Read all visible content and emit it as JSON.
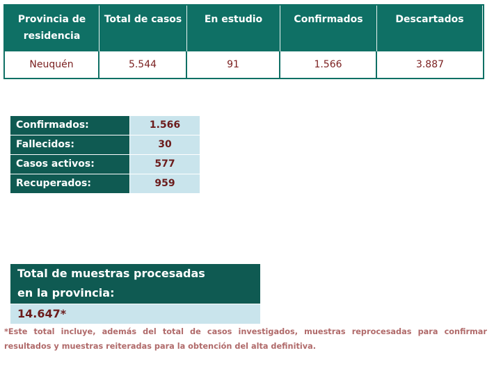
{
  "cases_table": {
    "headers": [
      "Provincia de residencia",
      "Total de casos",
      "En estudio",
      "Confirmados",
      "Descartados"
    ],
    "row": {
      "provincia": "Neuquén",
      "total": "5.544",
      "en_estudio": "91",
      "confirmados": "1.566",
      "descartados": "3.887"
    }
  },
  "summary": [
    {
      "label": "Confirmados:",
      "value": "1.566"
    },
    {
      "label": "Fallecidos:",
      "value": "30"
    },
    {
      "label": "Casos activos:",
      "value": "577"
    },
    {
      "label": "Recuperados:",
      "value": "959"
    }
  ],
  "samples": {
    "title_line1": "Total de muestras procesadas",
    "title_line2": "en la provincia:",
    "value": "14.647*"
  },
  "footnote": "*Este total incluye, además del total de casos investigados, muestras reprocesadas para confirmar resultados y muestras reiteradas para la obtención del alta definitiva.",
  "colors": {
    "header_teal": "#0f7065",
    "label_teal": "#0f5a52",
    "value_bg": "#c9e4ec",
    "value_text": "#6b1b1b"
  }
}
